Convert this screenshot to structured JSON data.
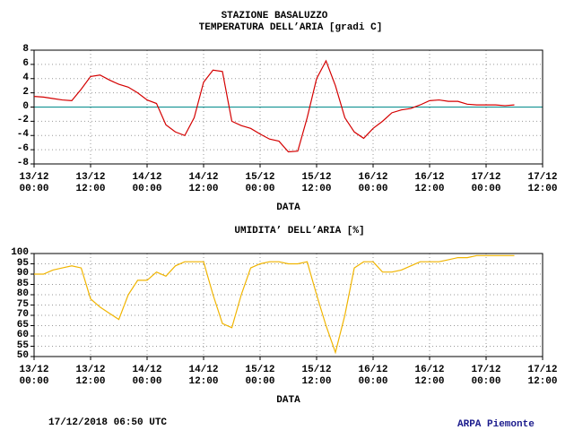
{
  "chart_data": [
    {
      "type": "line",
      "title": "STAZIONE BASALUZZO",
      "subtitle": "TEMPERATURA DELL’ARIA [gradi C]",
      "xlabel": "DATA",
      "x": [
        0,
        2,
        4,
        6,
        8,
        10,
        12,
        14,
        16,
        18,
        20,
        22,
        24,
        26,
        28,
        30,
        32,
        34,
        36,
        38,
        40,
        42,
        44,
        46,
        48,
        50,
        52,
        54,
        56,
        58,
        60,
        62,
        64,
        66,
        68,
        70,
        72,
        74,
        76,
        78,
        80,
        82,
        84,
        86,
        88,
        90,
        92,
        94,
        96,
        98,
        100,
        102
      ],
      "series": [
        {
          "name": "TEMPERATURA",
          "color": "#d40000",
          "values": [
            1.5,
            1.4,
            1.2,
            1.0,
            0.9,
            2.5,
            4.3,
            4.5,
            3.8,
            3.2,
            2.8,
            2.0,
            1.0,
            0.5,
            -2.5,
            -3.5,
            -4.0,
            -1.5,
            3.5,
            5.2,
            5.0,
            -2.0,
            -2.6,
            -3.0,
            -3.8,
            -4.5,
            -4.8,
            -6.3,
            -6.2,
            -1.5,
            4.0,
            6.5,
            3.0,
            -1.5,
            -3.5,
            -4.4,
            -3.0,
            -2.0,
            -0.8,
            -0.4,
            -0.2,
            0.3,
            0.9,
            1.0,
            0.8,
            0.8,
            0.4,
            0.3,
            0.3,
            0.3,
            0.2,
            0.3
          ]
        }
      ],
      "xlim": [
        0,
        108
      ],
      "xticks": [
        {
          "value": 0,
          "label": "13/12\n00:00"
        },
        {
          "value": 12,
          "label": "13/12\n12:00"
        },
        {
          "value": 24,
          "label": "14/12\n00:00"
        },
        {
          "value": 36,
          "label": "14/12\n12:00"
        },
        {
          "value": 48,
          "label": "15/12\n00:00"
        },
        {
          "value": 60,
          "label": "15/12\n12:00"
        },
        {
          "value": 72,
          "label": "16/12\n00:00"
        },
        {
          "value": 84,
          "label": "16/12\n12:00"
        },
        {
          "value": 96,
          "label": "17/12\n00:00"
        },
        {
          "value": 108,
          "label": "17/12\n12:00"
        }
      ],
      "ylim": [
        -8,
        8
      ],
      "yticks": [
        -8,
        -6,
        -4,
        -2,
        0,
        2,
        4,
        6,
        8
      ],
      "grid": true,
      "hline": {
        "value": 0,
        "color": "#008b8b"
      }
    },
    {
      "type": "line",
      "title": "UMIDITA’ DELL’ARIA [%]",
      "xlabel": "DATA",
      "x": [
        0,
        2,
        4,
        6,
        8,
        10,
        12,
        14,
        16,
        18,
        20,
        22,
        24,
        26,
        28,
        30,
        32,
        34,
        36,
        38,
        40,
        42,
        44,
        46,
        48,
        50,
        52,
        54,
        56,
        58,
        60,
        62,
        64,
        66,
        68,
        70,
        72,
        74,
        76,
        78,
        80,
        82,
        84,
        86,
        88,
        90,
        92,
        94,
        96,
        98,
        100,
        102
      ],
      "series": [
        {
          "name": "UMIDITA",
          "color": "#f0b400",
          "values": [
            90,
            90,
            92,
            93,
            94,
            93,
            78,
            74,
            71,
            68,
            80,
            87,
            87,
            91,
            89,
            94,
            96,
            96,
            96,
            80,
            66,
            64,
            80,
            93,
            95,
            96,
            96,
            95,
            95,
            96,
            80,
            65,
            52,
            70,
            93,
            96,
            96,
            91,
            91,
            92,
            94,
            96,
            96,
            96,
            97,
            98,
            98,
            99,
            99,
            99,
            99,
            99
          ]
        }
      ],
      "xlim": [
        0,
        108
      ],
      "xticks": [
        {
          "value": 0,
          "label": "13/12\n00:00"
        },
        {
          "value": 12,
          "label": "13/12\n12:00"
        },
        {
          "value": 24,
          "label": "14/12\n00:00"
        },
        {
          "value": 36,
          "label": "14/12\n12:00"
        },
        {
          "value": 48,
          "label": "15/12\n00:00"
        },
        {
          "value": 60,
          "label": "15/12\n12:00"
        },
        {
          "value": 72,
          "label": "16/12\n00:00"
        },
        {
          "value": 84,
          "label": "16/12\n12:00"
        },
        {
          "value": 96,
          "label": "17/12\n00:00"
        },
        {
          "value": 108,
          "label": "17/12\n12:00"
        }
      ],
      "ylim": [
        50,
        100
      ],
      "yticks": [
        50,
        55,
        60,
        65,
        70,
        75,
        80,
        85,
        90,
        95,
        100
      ],
      "grid": true
    }
  ],
  "footer": {
    "timestamp": "17/12/2018 06:50 UTC",
    "credit": "ARPA Piemonte"
  }
}
